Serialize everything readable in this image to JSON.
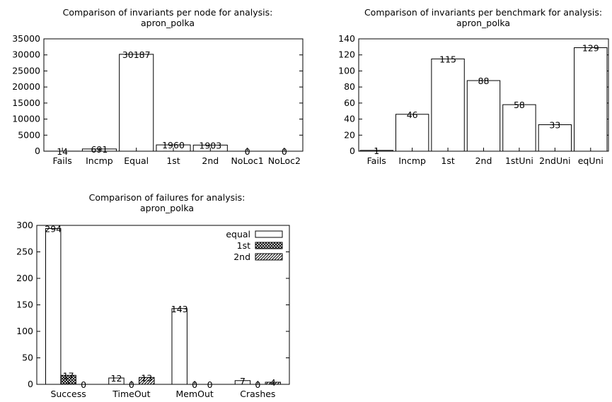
{
  "chart_data": [
    {
      "type": "bar",
      "title": "Comparison of invariants per node for analysis:",
      "subtitle": "apron_polka",
      "categories": [
        "Fails",
        "Incmp",
        "Equal",
        "1st",
        "2nd",
        "NoLoc1",
        "NoLoc2"
      ],
      "values": [
        14,
        691,
        30187,
        1960,
        1903,
        0,
        0
      ],
      "ylim": [
        0,
        35000
      ],
      "yticks": [
        0,
        5000,
        10000,
        15000,
        20000,
        25000,
        30000,
        35000
      ],
      "grid": false
    },
    {
      "type": "bar",
      "title": "Comparison of invariants per benchmark for analysis:",
      "subtitle": "apron_polka",
      "categories": [
        "Fails",
        "Incmp",
        "1st",
        "2nd",
        "1stUni",
        "2ndUni",
        "eqUni"
      ],
      "values": [
        1,
        46,
        115,
        88,
        58,
        33,
        129
      ],
      "ylim": [
        0,
        140
      ],
      "yticks": [
        0,
        20,
        40,
        60,
        80,
        100,
        120,
        140
      ],
      "grid": false
    },
    {
      "type": "bar",
      "title": "Comparison of failures for analysis:",
      "subtitle": "apron_polka",
      "categories": [
        "Success",
        "TimeOut",
        "MemOut",
        "Crashes"
      ],
      "series": [
        {
          "name": "equal",
          "values": [
            294,
            12,
            143,
            7
          ],
          "pattern": "none"
        },
        {
          "name": "1st",
          "values": [
            17,
            0,
            0,
            0
          ],
          "pattern": "crosshatch"
        },
        {
          "name": "2nd",
          "values": [
            0,
            13,
            0,
            4
          ],
          "pattern": "diagonal"
        }
      ],
      "ylim": [
        0,
        300
      ],
      "yticks": [
        0,
        50,
        100,
        150,
        200,
        250,
        300
      ],
      "legend_position": "top-right",
      "grid": false
    }
  ]
}
